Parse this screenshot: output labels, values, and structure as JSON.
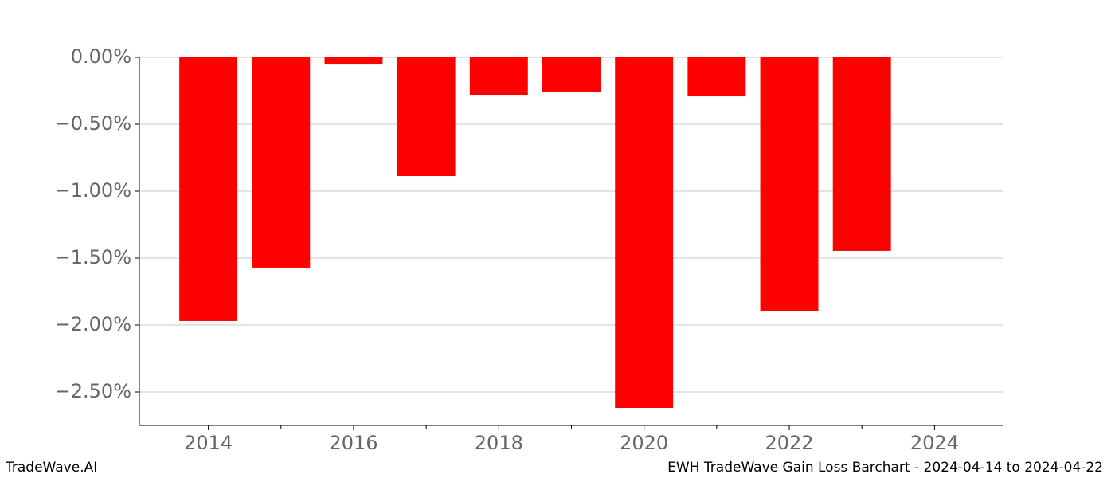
{
  "chart_data": {
    "type": "bar",
    "title": "EWH TradeWave Gain Loss Barchart - 2024-04-14 to 2024-04-22",
    "watermark": "TradeWave.AI",
    "x": [
      2014,
      2015,
      2016,
      2017,
      2018,
      2019,
      2020,
      2021,
      2022,
      2023
    ],
    "values": [
      -1.97,
      -1.571,
      -0.048,
      -0.887,
      -0.28,
      -0.256,
      -2.619,
      -0.292,
      -1.893,
      -1.446
    ],
    "color": "#ff0000",
    "xlim": [
      2013.05,
      2024.95
    ],
    "xticks": [
      2014,
      2016,
      2018,
      2020,
      2022,
      2024
    ],
    "xminor_ticks": [
      2015,
      2017,
      2019,
      2021,
      2023
    ],
    "ylim": [
      -2.75,
      0
    ],
    "yticks": [
      {
        "value": 0,
        "label": "0.00%"
      },
      {
        "value": -0.5,
        "label": "−0.50%"
      },
      {
        "value": -1,
        "label": "−1.00%"
      },
      {
        "value": -1.5,
        "label": "−1.50%"
      },
      {
        "value": -2,
        "label": "−2.00%"
      },
      {
        "value": -2.5,
        "label": "−2.50%"
      }
    ],
    "grid": true
  }
}
